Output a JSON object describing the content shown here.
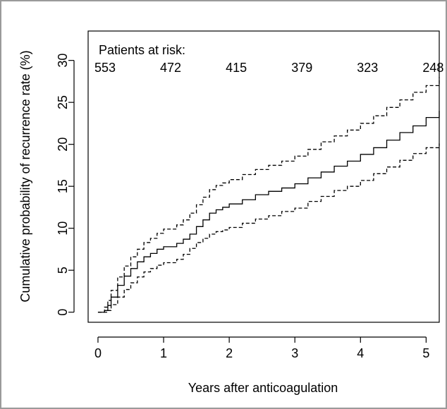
{
  "chart_data": {
    "type": "line",
    "title": "",
    "xlabel": "Years after anticoagulation",
    "ylabel": "Cumulative probability of recurrence rate (%)",
    "xlim": [
      -0.15,
      5.2
    ],
    "ylim": [
      -1.2,
      33.5
    ],
    "x_ticks": [
      0,
      1,
      2,
      3,
      4,
      5
    ],
    "x_tick_labels": [
      "0",
      "1",
      "2",
      "3",
      "4",
      "5"
    ],
    "y_ticks": [
      0,
      5,
      10,
      15,
      20,
      25,
      30
    ],
    "y_tick_labels": [
      "0",
      "5",
      "10",
      "15",
      "20",
      "25",
      "30"
    ],
    "grid": false,
    "legend": "none",
    "risk_table": {
      "label": "Patients at risk:",
      "x": [
        0,
        1,
        2,
        3,
        4,
        5
      ],
      "values": [
        "553",
        "472",
        "415",
        "379",
        "323",
        "248"
      ]
    },
    "series": [
      {
        "style": "solid",
        "x": [
          0,
          0.1,
          0.15,
          0.2,
          0.3,
          0.4,
          0.5,
          0.6,
          0.7,
          0.8,
          0.9,
          1.0,
          1.2,
          1.3,
          1.4,
          1.5,
          1.6,
          1.7,
          1.8,
          1.9,
          2.0,
          2.2,
          2.4,
          2.6,
          2.8,
          3.0,
          3.2,
          3.4,
          3.6,
          3.8,
          4.0,
          4.2,
          4.4,
          4.6,
          4.8,
          5.0,
          5.2
        ],
        "y": [
          0,
          0.2,
          0.8,
          1.8,
          3.2,
          4.3,
          5.2,
          6.0,
          6.6,
          7.0,
          7.5,
          7.8,
          8.2,
          8.7,
          9.3,
          10.2,
          11.0,
          11.8,
          12.2,
          12.5,
          12.9,
          13.4,
          14.0,
          14.4,
          14.8,
          15.3,
          16.0,
          16.7,
          17.4,
          18.0,
          18.8,
          19.6,
          20.5,
          21.4,
          22.2,
          23.2,
          24.0
        ]
      },
      {
        "style": "dashed",
        "x": [
          0,
          0.1,
          0.15,
          0.2,
          0.3,
          0.4,
          0.5,
          0.6,
          0.7,
          0.8,
          0.9,
          1.0,
          1.2,
          1.3,
          1.4,
          1.5,
          1.6,
          1.7,
          1.8,
          1.9,
          2.0,
          2.2,
          2.4,
          2.6,
          2.8,
          3.0,
          3.2,
          3.4,
          3.6,
          3.8,
          4.0,
          4.2,
          4.4,
          4.6,
          4.8,
          5.0,
          5.2
        ],
        "y": [
          0,
          0.6,
          1.4,
          2.6,
          4.2,
          5.5,
          6.6,
          7.5,
          8.3,
          8.8,
          9.4,
          9.9,
          10.4,
          11.0,
          11.8,
          12.8,
          13.7,
          14.6,
          15.1,
          15.4,
          15.8,
          16.4,
          17.0,
          17.5,
          18.0,
          18.6,
          19.4,
          20.3,
          21.0,
          21.7,
          22.5,
          23.4,
          24.4,
          25.3,
          26.2,
          27.0,
          28.0
        ]
      },
      {
        "style": "dashed",
        "x": [
          0,
          0.1,
          0.15,
          0.2,
          0.3,
          0.4,
          0.5,
          0.6,
          0.7,
          0.8,
          0.9,
          1.0,
          1.2,
          1.3,
          1.4,
          1.5,
          1.6,
          1.7,
          1.8,
          1.9,
          2.0,
          2.2,
          2.4,
          2.6,
          2.8,
          3.0,
          3.2,
          3.4,
          3.6,
          3.8,
          4.0,
          4.2,
          4.4,
          4.6,
          4.8,
          5.0,
          5.2
        ],
        "y": [
          0,
          0,
          0.2,
          0.9,
          1.8,
          2.7,
          3.5,
          4.2,
          4.8,
          5.2,
          5.6,
          5.9,
          6.3,
          6.9,
          7.6,
          8.3,
          8.8,
          9.3,
          9.6,
          9.8,
          10.1,
          10.6,
          11.1,
          11.5,
          12.0,
          12.4,
          13.2,
          13.8,
          14.5,
          15.0,
          15.7,
          16.5,
          17.3,
          18.1,
          18.9,
          19.6,
          20.1
        ]
      }
    ]
  }
}
